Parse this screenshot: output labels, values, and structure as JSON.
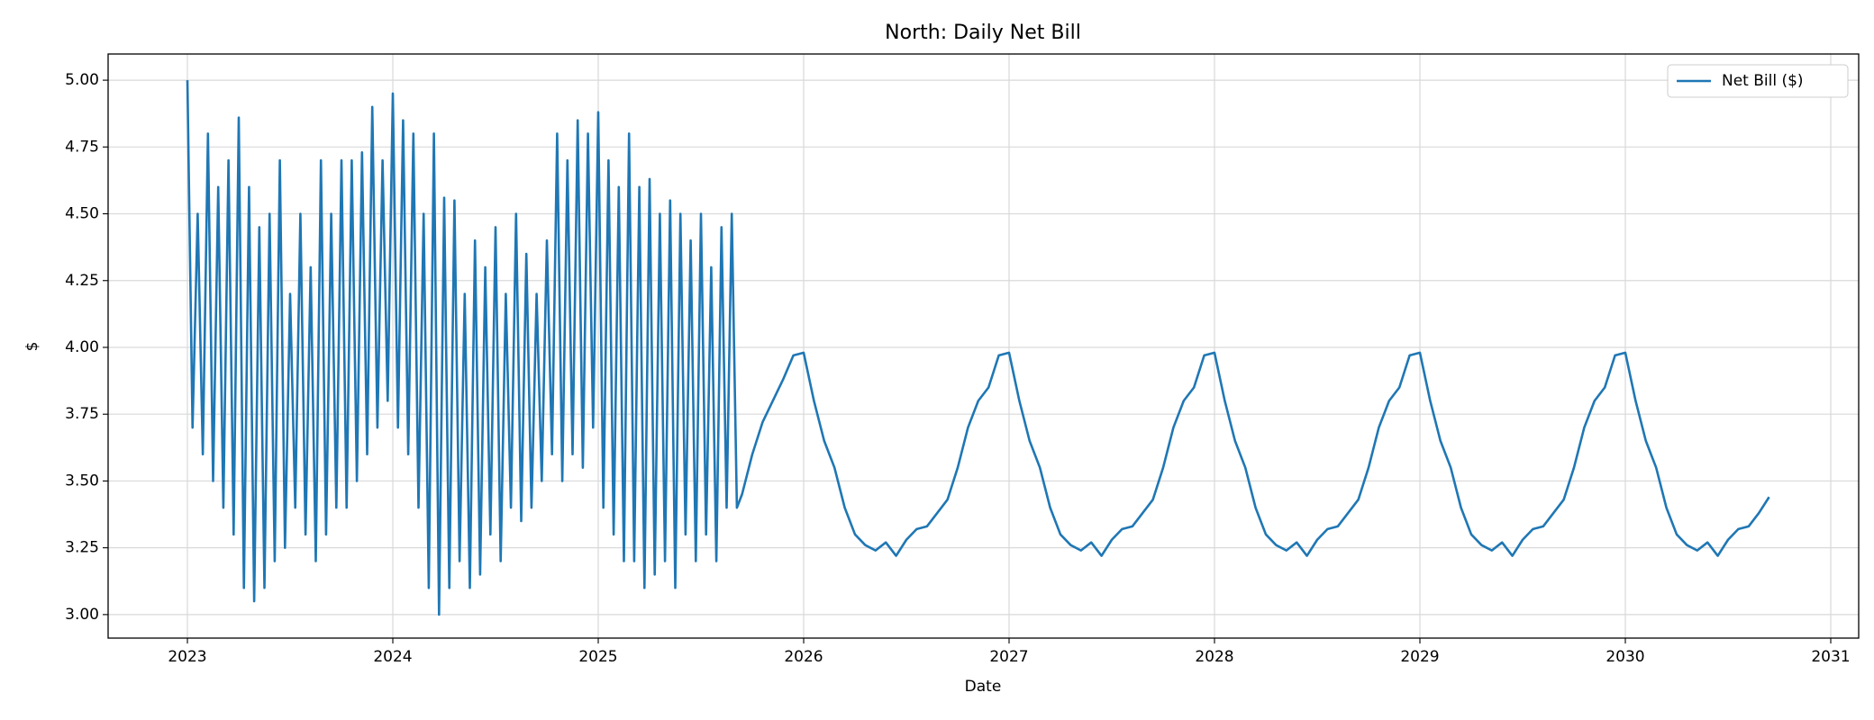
{
  "chart_data": {
    "type": "line",
    "title": "North: Daily Net Bill",
    "xlabel": "Date",
    "ylabel": "$",
    "x": [
      2023,
      2023.025,
      2023.05,
      2023.075,
      2023.1,
      2023.125,
      2023.15,
      2023.175,
      2023.2,
      2023.225,
      2023.25,
      2023.275,
      2023.3,
      2023.325,
      2023.35,
      2023.375,
      2023.4,
      2023.425,
      2023.45,
      2023.475,
      2023.5,
      2023.525,
      2023.55,
      2023.575,
      2023.6,
      2023.625,
      2023.65,
      2023.675,
      2023.7,
      2023.725,
      2023.75,
      2023.775,
      2023.8,
      2023.825,
      2023.85,
      2023.875,
      2023.9,
      2023.925,
      2023.95,
      2023.975,
      2024,
      2024.025,
      2024.05,
      2024.075,
      2024.1,
      2024.125,
      2024.15,
      2024.175,
      2024.2,
      2024.225,
      2024.25,
      2024.275,
      2024.3,
      2024.325,
      2024.35,
      2024.375,
      2024.4,
      2024.425,
      2024.45,
      2024.475,
      2024.5,
      2024.525,
      2024.55,
      2024.575,
      2024.6,
      2024.625,
      2024.65,
      2024.675,
      2024.7,
      2024.725,
      2024.75,
      2024.775,
      2024.8,
      2024.825,
      2024.85,
      2024.875,
      2024.9,
      2024.925,
      2024.95,
      2024.975,
      2025,
      2025.025,
      2025.05,
      2025.075,
      2025.1,
      2025.125,
      2025.15,
      2025.175,
      2025.2,
      2025.225,
      2025.25,
      2025.275,
      2025.3,
      2025.325,
      2025.35,
      2025.375,
      2025.4,
      2025.425,
      2025.45,
      2025.475,
      2025.5,
      2025.525,
      2025.55,
      2025.575,
      2025.6,
      2025.625,
      2025.65,
      2025.675,
      2025.7,
      2025.75,
      2025.8,
      2025.85,
      2025.9,
      2025.95,
      2026,
      2026.05,
      2026.1,
      2026.15,
      2026.2,
      2026.25,
      2026.3,
      2026.35,
      2026.4,
      2026.45,
      2026.5,
      2026.55,
      2026.6,
      2026.65,
      2026.7,
      2026.75,
      2026.8,
      2026.85,
      2026.9,
      2026.95,
      2027,
      2027.05,
      2027.1,
      2027.15,
      2027.2,
      2027.25,
      2027.3,
      2027.35,
      2027.4,
      2027.45,
      2027.5,
      2027.55,
      2027.6,
      2027.65,
      2027.7,
      2027.75,
      2027.8,
      2027.85,
      2027.9,
      2027.95,
      2028,
      2028.05,
      2028.1,
      2028.15,
      2028.2,
      2028.25,
      2028.3,
      2028.35,
      2028.4,
      2028.45,
      2028.5,
      2028.55,
      2028.6,
      2028.65,
      2028.7,
      2028.75,
      2028.8,
      2028.85,
      2028.9,
      2028.95,
      2029,
      2029.05,
      2029.1,
      2029.15,
      2029.2,
      2029.25,
      2029.3,
      2029.35,
      2029.4,
      2029.45,
      2029.5,
      2029.55,
      2029.6,
      2029.65,
      2029.7,
      2029.75,
      2029.8,
      2029.85,
      2029.9,
      2029.95,
      2030,
      2030.05,
      2030.1,
      2030.15,
      2030.2,
      2030.25,
      2030.3,
      2030.35,
      2030.4,
      2030.45,
      2030.5,
      2030.55,
      2030.6,
      2030.65,
      2030.7
    ],
    "series": [
      {
        "name": "Net Bill ($)",
        "color": "#1f77b4",
        "values": [
          5.0,
          3.7,
          4.5,
          3.6,
          4.8,
          3.5,
          4.6,
          3.4,
          4.7,
          3.3,
          4.86,
          3.1,
          4.6,
          3.05,
          4.45,
          3.1,
          4.5,
          3.2,
          4.7,
          3.25,
          4.2,
          3.4,
          4.5,
          3.3,
          4.3,
          3.2,
          4.7,
          3.3,
          4.5,
          3.4,
          4.7,
          3.4,
          4.7,
          3.5,
          4.73,
          3.6,
          4.9,
          3.7,
          4.7,
          3.8,
          4.95,
          3.7,
          4.85,
          3.6,
          4.8,
          3.4,
          4.5,
          3.1,
          4.8,
          3.0,
          4.56,
          3.1,
          4.55,
          3.2,
          4.2,
          3.1,
          4.4,
          3.15,
          4.3,
          3.3,
          4.45,
          3.2,
          4.2,
          3.4,
          4.5,
          3.35,
          4.35,
          3.4,
          4.2,
          3.5,
          4.4,
          3.6,
          4.8,
          3.5,
          4.7,
          3.6,
          4.85,
          3.55,
          4.8,
          3.7,
          4.88,
          3.4,
          4.7,
          3.3,
          4.6,
          3.2,
          4.8,
          3.2,
          4.6,
          3.1,
          4.63,
          3.15,
          4.5,
          3.2,
          4.55,
          3.1,
          4.5,
          3.3,
          4.4,
          3.2,
          4.5,
          3.3,
          4.3,
          3.2,
          4.45,
          3.4,
          4.5,
          3.4,
          3.45,
          3.6,
          3.72,
          3.8,
          3.88,
          3.97,
          3.98,
          3.8,
          3.65,
          3.55,
          3.4,
          3.3,
          3.26,
          3.24,
          3.27,
          3.22,
          3.28,
          3.32,
          3.33,
          3.38,
          3.43,
          3.55,
          3.7,
          3.8,
          3.85,
          3.97,
          3.98,
          3.8,
          3.65,
          3.55,
          3.4,
          3.3,
          3.26,
          3.24,
          3.27,
          3.22,
          3.28,
          3.32,
          3.33,
          3.38,
          3.43,
          3.55,
          3.7,
          3.8,
          3.85,
          3.97,
          3.98,
          3.8,
          3.65,
          3.55,
          3.4,
          3.3,
          3.26,
          3.24,
          3.27,
          3.22,
          3.28,
          3.32,
          3.33,
          3.38,
          3.43,
          3.55,
          3.7,
          3.8,
          3.85,
          3.97,
          3.98,
          3.8,
          3.65,
          3.55,
          3.4,
          3.3,
          3.26,
          3.24,
          3.27,
          3.22,
          3.28,
          3.32,
          3.33,
          3.38,
          3.43,
          3.55,
          3.7,
          3.8,
          3.85,
          3.97,
          3.98,
          3.8,
          3.65,
          3.55,
          3.4,
          3.3,
          3.26,
          3.24,
          3.27,
          3.22,
          3.28,
          3.32,
          3.33,
          3.38,
          3.44
        ]
      }
    ],
    "xlim": [
      2022.614,
      2031.136
    ],
    "xticks": [
      2023,
      2024,
      2025,
      2026,
      2027,
      2028,
      2029,
      2030,
      2031
    ],
    "ylim": [
      2.912,
      5.098
    ],
    "yticks": [
      {
        "value": 3,
        "label": "3.00"
      },
      {
        "value": 3.25,
        "label": "3.25"
      },
      {
        "value": 3.5,
        "label": "3.50"
      },
      {
        "value": 3.75,
        "label": "3.75"
      },
      {
        "value": 4,
        "label": "4.00"
      },
      {
        "value": 4.25,
        "label": "4.25"
      },
      {
        "value": 4.5,
        "label": "4.50"
      },
      {
        "value": 4.75,
        "label": "4.75"
      },
      {
        "value": 5,
        "label": "5.00"
      }
    ],
    "grid": true,
    "legend": "upper right"
  }
}
